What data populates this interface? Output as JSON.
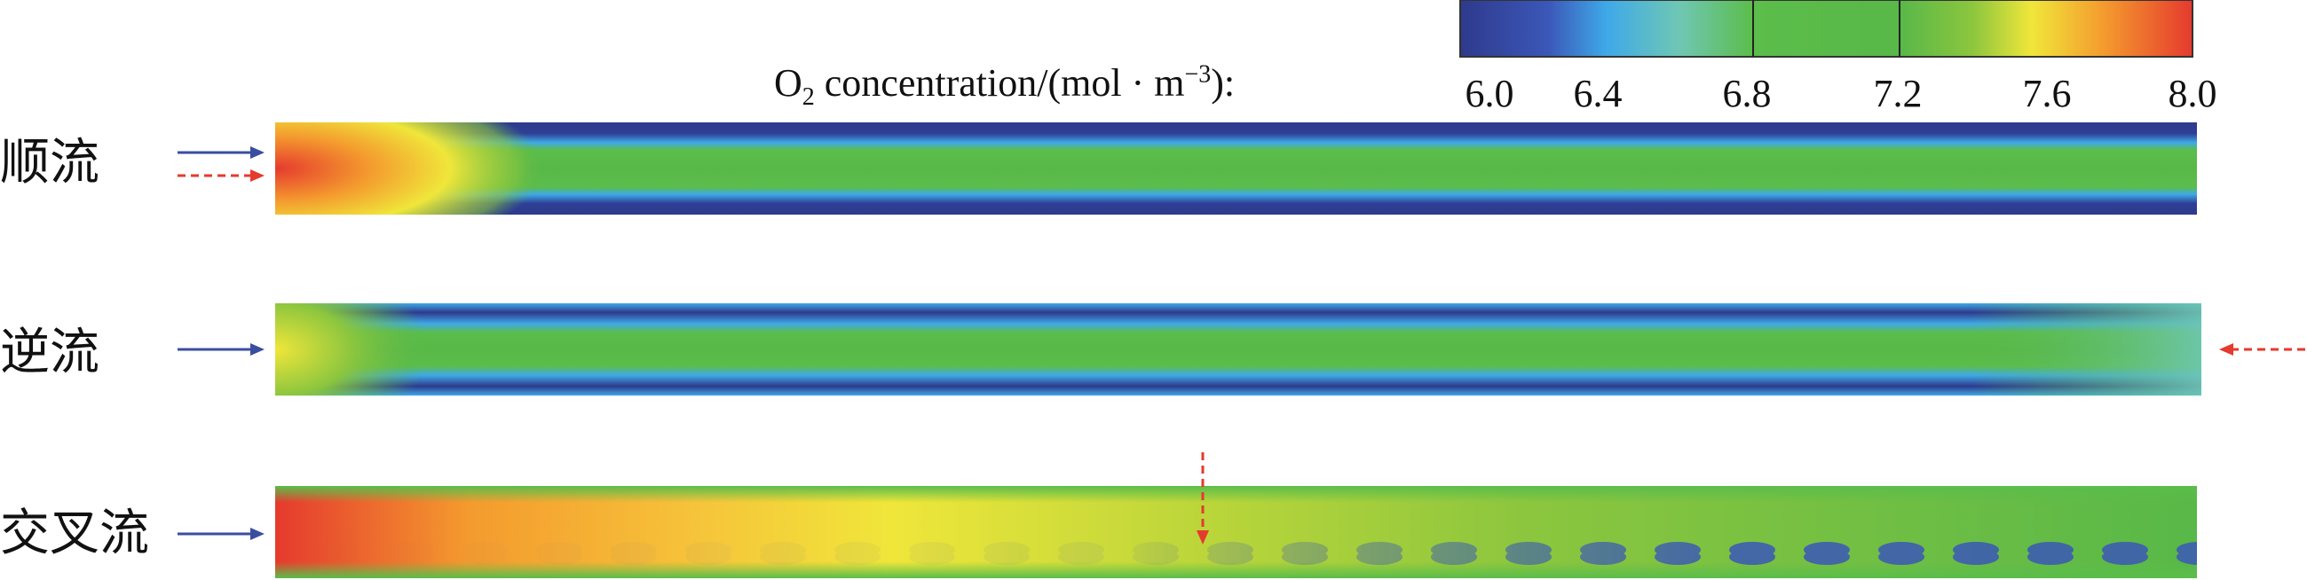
{
  "colorbar": {
    "label_prefix": "O",
    "label_sub": "2",
    "label_main": " concentration/(mol · m",
    "label_sup": "−3",
    "label_suffix": "):",
    "ticks": [
      "6.0",
      "6.4",
      "6.8",
      "7.2",
      "7.6",
      "8.0"
    ],
    "range": [
      6.0,
      8.0
    ],
    "colors": [
      "#2e3a8c",
      "#3b57b8",
      "#3fa9e8",
      "#6fc7b3",
      "#5bbd4a",
      "#58b848",
      "#8cc63e",
      "#f0e63a",
      "#f49a2e",
      "#e53a2e"
    ]
  },
  "rows": [
    {
      "label": "顺流",
      "inlet_left": [
        "solid-blue",
        "dashed-red"
      ],
      "inlet_other": ""
    },
    {
      "label": "逆流",
      "inlet_left": [
        "solid-blue"
      ],
      "inlet_other": "dashed-red-from-right"
    },
    {
      "label": "交叉流",
      "inlet_left": [
        "solid-blue"
      ],
      "inlet_other": "dashed-red-from-top"
    }
  ]
}
